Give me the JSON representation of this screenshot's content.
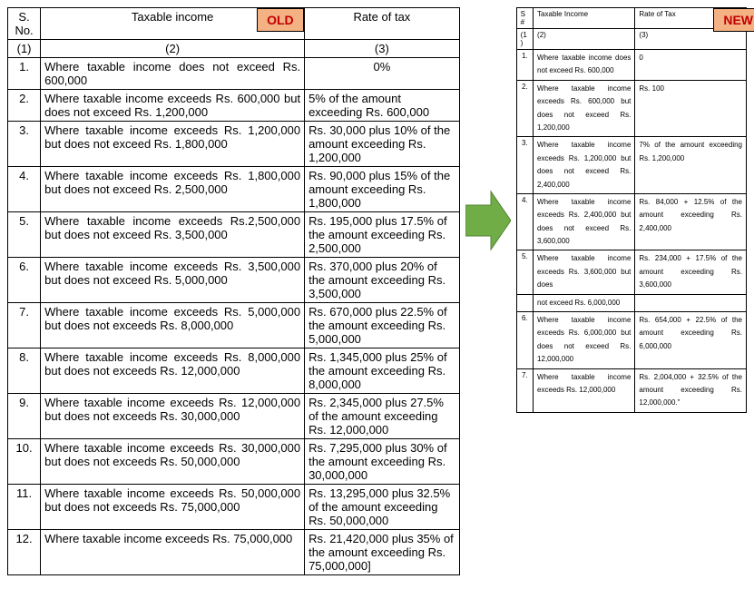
{
  "badges": {
    "old": "OLD",
    "new": "NEW"
  },
  "arrow_color": "#70ad47",
  "old_table": {
    "headers": {
      "sno": "S. No.",
      "income": "Taxable income",
      "rate": "Rate of tax"
    },
    "subheaders": {
      "c1": "(1)",
      "c2": "(2)",
      "c3": "(3)"
    },
    "rows": [
      {
        "sno": "1.",
        "income": "Where taxable income does not exceed Rs. 600,000",
        "rate": "0%"
      },
      {
        "sno": "2.",
        "income": "Where taxable income exceeds Rs. 600,000 but does not exceed Rs. 1,200,000",
        "rate": "5% of the amount exceeding Rs. 600,000"
      },
      {
        "sno": "3.",
        "income": "Where taxable income exceeds Rs. 1,200,000 but does not exceed Rs. 1,800,000",
        "rate": "Rs. 30,000 plus 10% of the amount exceeding Rs. 1,200,000"
      },
      {
        "sno": "4.",
        "income": "Where taxable income exceeds Rs. 1,800,000 but does not exceed Rs. 2,500,000",
        "rate": "Rs. 90,000 plus 15% of the amount exceeding Rs. 1,800,000"
      },
      {
        "sno": "5.",
        "income": "Where taxable income exceeds Rs.2,500,000 but does not exceed Rs. 3,500,000",
        "rate": "Rs. 195,000 plus 17.5% of the amount exceeding Rs. 2,500,000"
      },
      {
        "sno": "6.",
        "income": "Where taxable income exceeds Rs. 3,500,000 but does not exceed Rs. 5,000,000",
        "rate": "Rs. 370,000 plus 20% of the amount exceeding Rs. 3,500,000"
      },
      {
        "sno": "7.",
        "income": "Where taxable income exceeds Rs. 5,000,000 but does not exceeds Rs. 8,000,000",
        "rate": "Rs. 670,000 plus 22.5% of the amount exceeding Rs. 5,000,000"
      },
      {
        "sno": "8.",
        "income": "Where taxable income exceeds Rs. 8,000,000 but does not exceeds Rs. 12,000,000",
        "rate": "Rs. 1,345,000 plus 25% of the amount exceeding Rs. 8,000,000"
      },
      {
        "sno": "9.",
        "income": "Where taxable income exceeds Rs. 12,000,000 but does not exceeds Rs. 30,000,000",
        "rate": "Rs. 2,345,000 plus 27.5% of the amount exceeding Rs. 12,000,000"
      },
      {
        "sno": "10.",
        "income": "Where taxable income exceeds Rs. 30,000,000 but does not exceeds Rs. 50,000,000",
        "rate": "Rs. 7,295,000 plus 30% of the amount exceeding Rs. 30,000,000"
      },
      {
        "sno": "11.",
        "income": "Where taxable income exceeds Rs. 50,000,000 but does not exceeds Rs. 75,000,000",
        "rate": "Rs. 13,295,000 plus 32.5% of the amount exceeding Rs. 50,000,000"
      },
      {
        "sno": "12.",
        "income": "Where taxable income exceeds Rs. 75,000,000",
        "rate": "Rs. 21,420,000 plus 35% of the amount exceeding Rs. 75,000,000]"
      }
    ]
  },
  "new_table": {
    "headers": {
      "sno": "S#",
      "income": "Taxable Income",
      "rate": "Rate of Tax"
    },
    "subheaders": {
      "c1": "(1)",
      "c2": "(2)",
      "c3": "(3)"
    },
    "rows": [
      {
        "sno": "1.",
        "income": "Where taxable income does not exceed Rs. 600,000",
        "rate": "0"
      },
      {
        "sno": "2.",
        "income": "Where taxable income exceeds Rs. 600,000 but does not exceed Rs. 1,200,000",
        "rate": "Rs. 100"
      },
      {
        "sno": "3.",
        "income": "Where taxable income exceeds Rs. 1,200,000 but does not exceed Rs. 2,400,000",
        "rate": "7% of the amount exceeding Rs. 1,200,000"
      },
      {
        "sno": "4.",
        "income": "Where taxable income exceeds Rs. 2,400,000 but does not exceed Rs. 3,600,000",
        "rate": "Rs. 84,000 + 12.5% of the amount exceeding Rs. 2,400,000"
      },
      {
        "sno": "5.",
        "income": "Where taxable income exceeds Rs. 3,600,000 but does",
        "rate": "Rs. 234,000 + 17.5% of the amount exceeding Rs. 3,600,000"
      },
      {
        "sno": "",
        "income": "not exceed Rs. 6,000,000",
        "rate": ""
      },
      {
        "sno": "6.",
        "income": "Where taxable income exceeds Rs. 6,000,000 but does not exceed Rs. 12,000,000",
        "rate": "Rs. 654,000 + 22.5% of the amount exceeding Rs. 6,000,000"
      },
      {
        "sno": "7.",
        "income": "Where taxable income exceeds Rs. 12,000,000",
        "rate": "Rs. 2,004,000 + 32.5% of the amount exceeding Rs. 12,000,000.\""
      }
    ]
  }
}
